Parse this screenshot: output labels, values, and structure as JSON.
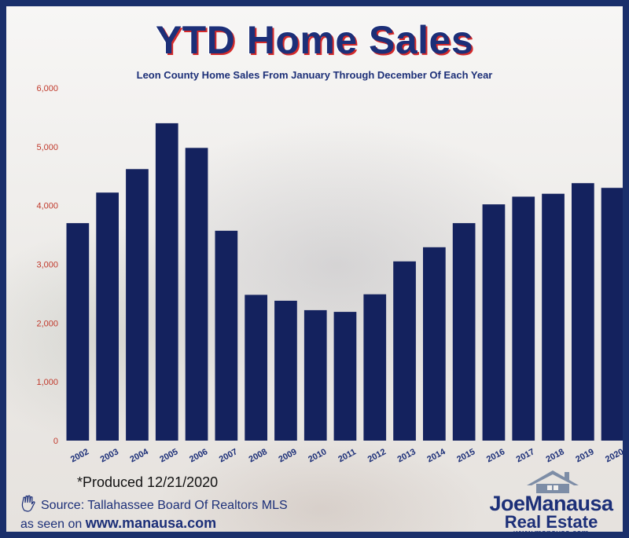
{
  "header": {
    "title": "YTD Home Sales",
    "subtitle": "Leon County Home Sales From January Through December Of Each Year"
  },
  "footer": {
    "produced": "*Produced 12/21/2020",
    "source": "Source: Tallahassee Board Of Realtors MLS",
    "seen_on_prefix": "as seen on ",
    "seen_on_url": "www.manausa.com",
    "hand_icon": "hand-icon"
  },
  "logo": {
    "name": "JoeManausa",
    "real_estate": "Real Estate",
    "website": "www.manausa.com",
    "house_icon": "house-roof-icon"
  },
  "colors": {
    "bar": "#14225e",
    "title": "#1c2f78",
    "title_shadow": "#d42a2a",
    "frame": "#1a2f6b",
    "axis_text": "#c0392b"
  },
  "chart_data": {
    "type": "bar",
    "title": "YTD Home Sales",
    "subtitle": "Leon County Home Sales From January Through December Of Each Year",
    "categories": [
      "2002",
      "2003",
      "2004",
      "2005",
      "2006",
      "2007",
      "2008",
      "2009",
      "2010",
      "2011",
      "2012",
      "2013",
      "2014",
      "2015",
      "2016",
      "2017",
      "2018",
      "2019",
      "2020"
    ],
    "values": [
      3700,
      4220,
      4620,
      5400,
      4980,
      3570,
      2480,
      2380,
      2220,
      2190,
      2490,
      3050,
      3290,
      3700,
      4020,
      4150,
      4200,
      4380,
      4300
    ],
    "xlabel": "",
    "ylabel": "",
    "ylim": [
      0,
      6000
    ],
    "yticks": [
      0,
      1000,
      2000,
      3000,
      4000,
      5000,
      6000
    ],
    "ytick_labels": [
      "0",
      "1,000",
      "2,000",
      "3,000",
      "4,000",
      "5,000",
      "6,000"
    ],
    "grid": false,
    "legend": "none"
  }
}
